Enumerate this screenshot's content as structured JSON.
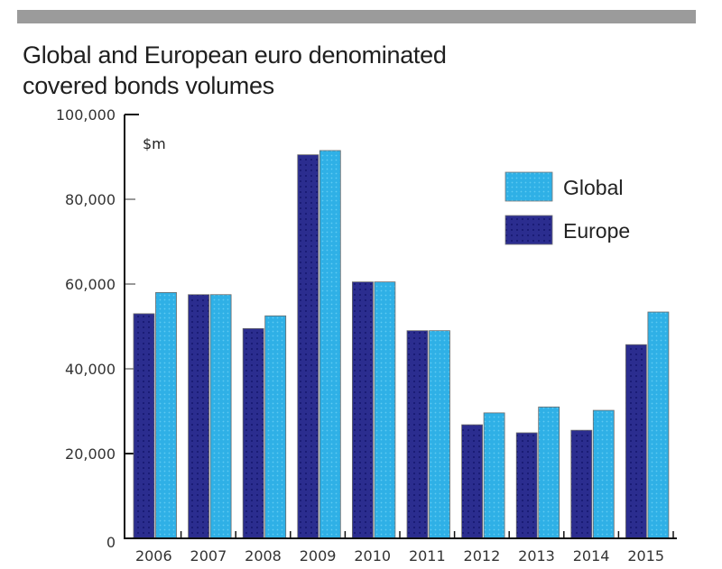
{
  "chart_data": {
    "type": "bar",
    "title": "Global and European euro denominated covered bonds volumes",
    "title_lines": [
      "Global and European euro denominated",
      "covered bonds volumes"
    ],
    "xlabel": "",
    "ylabel": "$m",
    "ylim": [
      0,
      100000
    ],
    "yticks": [
      0,
      20000,
      40000,
      60000,
      80000,
      100000
    ],
    "ytick_labels": [
      "0",
      "20,000",
      "40,000",
      "60,000",
      "80,000",
      "100,000"
    ],
    "categories": [
      "2006",
      "2007",
      "2008",
      "2009",
      "2010",
      "2011",
      "2012",
      "2013",
      "2014",
      "2015"
    ],
    "series": [
      {
        "name": "Europe",
        "color": "#2b2d8f",
        "values": [
          53000,
          57500,
          49500,
          90500,
          60500,
          49000,
          26800,
          24900,
          25500,
          45700
        ]
      },
      {
        "name": "Global",
        "color": "#2fb0e6",
        "values": [
          58000,
          57500,
          52500,
          91500,
          60500,
          49000,
          29600,
          31000,
          30200,
          53400
        ]
      }
    ],
    "legend": {
      "position": "top-right",
      "entries": [
        {
          "name": "Global",
          "color": "#2fb0e6"
        },
        {
          "name": "Europe",
          "color": "#2b2d8f"
        }
      ]
    },
    "grid": false
  }
}
